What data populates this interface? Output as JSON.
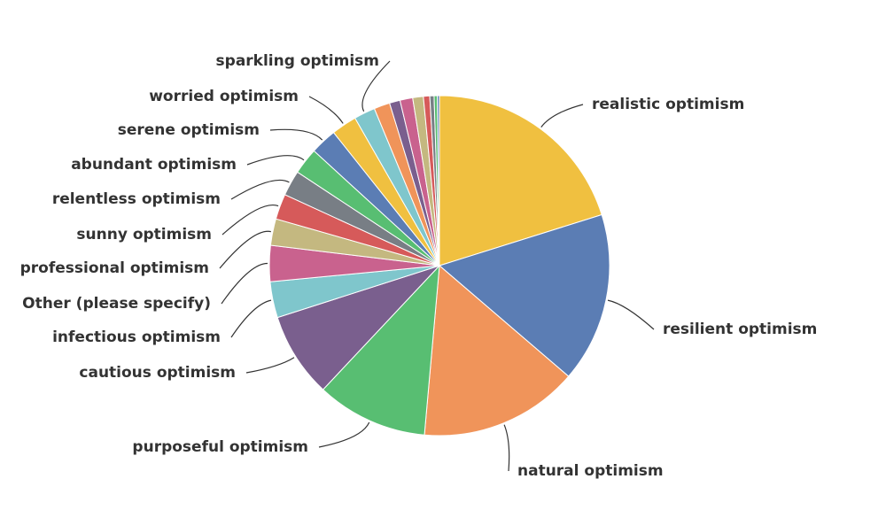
{
  "chart_data": {
    "type": "pie",
    "title": "",
    "slices": [
      {
        "label": "realistic optimism",
        "value": 20.0,
        "color": "#F0C040"
      },
      {
        "label": "resilient optimism",
        "value": 16.0,
        "color": "#5B7DB4"
      },
      {
        "label": "natural optimism",
        "value": 15.0,
        "color": "#F0945A"
      },
      {
        "label": "purposeful optimism",
        "value": 10.5,
        "color": "#58BE72"
      },
      {
        "label": "cautious optimism",
        "value": 8.0,
        "color": "#7A5F8E"
      },
      {
        "label": "infectious optimism",
        "value": 3.4,
        "color": "#7FC6CC"
      },
      {
        "label": "Other (please specify)",
        "value": 3.4,
        "color": "#C9628E"
      },
      {
        "label": "professional optimism",
        "value": 2.5,
        "color": "#C4B880"
      },
      {
        "label": "sunny optimism",
        "value": 2.4,
        "color": "#D65A5A"
      },
      {
        "label": "relentless optimism",
        "value": 2.4,
        "color": "#787E85"
      },
      {
        "label": "abundant optimism",
        "value": 2.5,
        "color": "#58BE72"
      },
      {
        "label": "serene optimism",
        "value": 2.5,
        "color": "#5B7DB4"
      },
      {
        "label": "worried optimism",
        "value": 2.4,
        "color": "#F0C040"
      },
      {
        "label": "sparkling optimism",
        "value": 2.0,
        "color": "#7FC6CC"
      },
      {
        "label": "",
        "value": 1.5,
        "color": "#F0945A"
      },
      {
        "label": "",
        "value": 1.0,
        "color": "#7A5F8E"
      },
      {
        "label": "",
        "value": 1.2,
        "color": "#C9628E"
      },
      {
        "label": "",
        "value": 1.0,
        "color": "#C4B880"
      },
      {
        "label": "",
        "value": 0.6,
        "color": "#D65A5A"
      },
      {
        "label": "",
        "value": 0.4,
        "color": "#787E85"
      },
      {
        "label": "",
        "value": 0.3,
        "color": "#58BE72"
      },
      {
        "label": "",
        "value": 0.2,
        "color": "#5B7DB4"
      }
    ],
    "legend": "none"
  }
}
